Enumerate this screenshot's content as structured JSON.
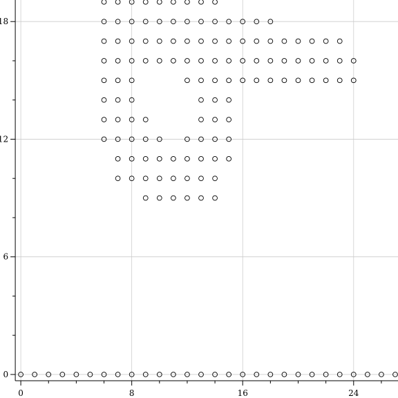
{
  "chart_data": {
    "type": "scatter",
    "title": "",
    "xlabel": "",
    "ylabel": "",
    "xlim": [
      -1.5,
      27.2
    ],
    "ylim": [
      -1.2,
      19.1
    ],
    "grid": true,
    "marker": "open-circle",
    "x_ticks": [
      {
        "value": 0,
        "label": "0"
      },
      {
        "value": 8,
        "label": "8"
      },
      {
        "value": 16,
        "label": "16"
      },
      {
        "value": 24,
        "label": "24"
      }
    ],
    "y_ticks": [
      {
        "value": 0,
        "label": "0"
      },
      {
        "value": 6,
        "label": "6"
      },
      {
        "value": 12,
        "label": "12"
      },
      {
        "value": 18,
        "label": "18"
      }
    ],
    "x_minor_ticks": [
      2,
      4,
      6,
      10,
      12,
      14,
      18,
      20,
      22,
      26
    ],
    "y_minor_ticks": [
      2,
      4,
      8,
      10,
      14,
      16
    ],
    "rows": [
      {
        "y": 0,
        "x": [
          0,
          1,
          2,
          3,
          4,
          5,
          6,
          7,
          8,
          9,
          10,
          11,
          12,
          13,
          14,
          15,
          16,
          17,
          18,
          19,
          20,
          21,
          22,
          23,
          24,
          25,
          26,
          27
        ]
      },
      {
        "y": 9,
        "x": [
          9,
          10,
          11,
          12,
          13,
          14
        ]
      },
      {
        "y": 10,
        "x": [
          7,
          8,
          9,
          10,
          11,
          12,
          13,
          14
        ]
      },
      {
        "y": 11,
        "x": [
          7,
          8,
          9,
          10,
          11,
          12,
          13,
          14,
          15
        ]
      },
      {
        "y": 12,
        "x": [
          6,
          7,
          8,
          9,
          10,
          12,
          13,
          14,
          15
        ]
      },
      {
        "y": 13,
        "x": [
          6,
          7,
          8,
          9,
          13,
          14,
          15
        ]
      },
      {
        "y": 14,
        "x": [
          6,
          7,
          8,
          13,
          14,
          15
        ]
      },
      {
        "y": 15,
        "x": [
          6,
          7,
          8,
          12,
          13,
          14,
          15,
          16,
          17,
          18,
          19,
          20,
          21,
          22,
          23,
          24
        ]
      },
      {
        "y": 16,
        "x": [
          6,
          7,
          8,
          9,
          10,
          11,
          12,
          13,
          14,
          15,
          16,
          17,
          18,
          19,
          20,
          21,
          22,
          23,
          24
        ]
      },
      {
        "y": 17,
        "x": [
          6,
          7,
          8,
          9,
          10,
          11,
          12,
          13,
          14,
          15,
          16,
          17,
          18,
          19,
          20,
          21,
          22,
          23
        ]
      },
      {
        "y": 18,
        "x": [
          6,
          7,
          8,
          9,
          10,
          11,
          12,
          13,
          14,
          15,
          16,
          17,
          18
        ]
      },
      {
        "y": 19,
        "x": [
          6,
          7,
          8,
          9,
          10,
          11,
          12,
          13,
          14
        ]
      }
    ]
  }
}
